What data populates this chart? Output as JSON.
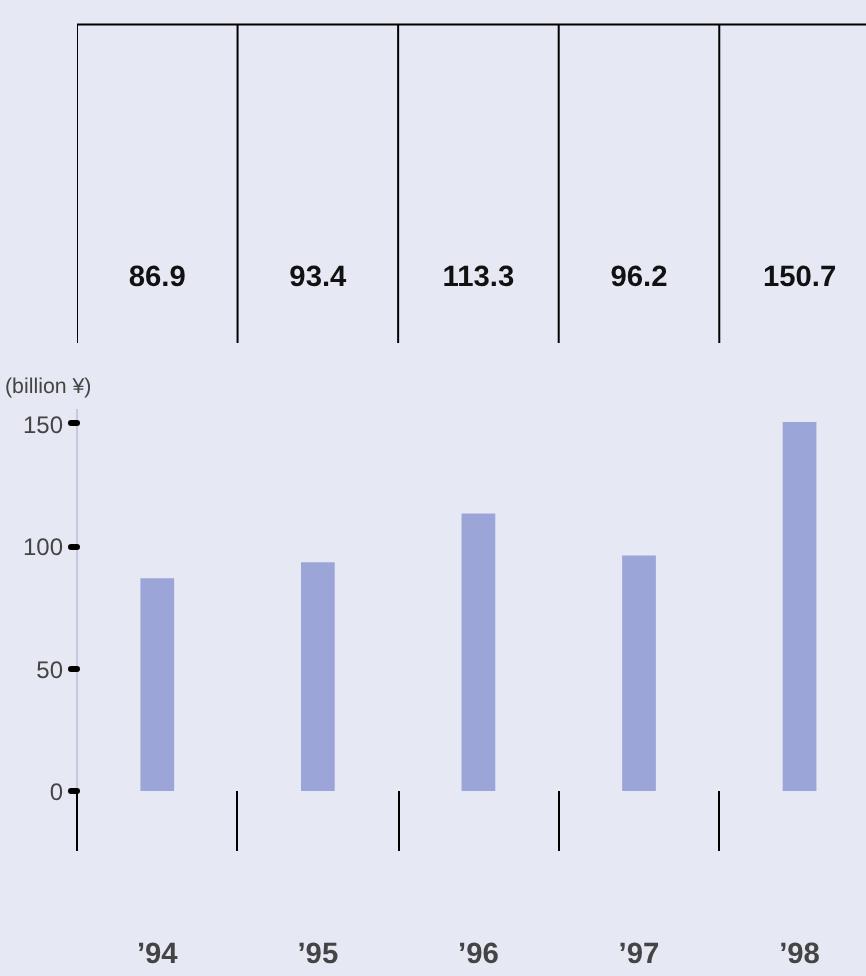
{
  "chart_data": {
    "type": "bar",
    "ylabel": "(billion ¥)",
    "categories": [
      "’94",
      "’95",
      "’96",
      "’97",
      "’98"
    ],
    "values": [
      86.9,
      93.4,
      113.3,
      96.2,
      150.7
    ],
    "color": "#9ba5d7",
    "ylim": [
      0,
      156
    ],
    "yticks": [
      0,
      50,
      100,
      150
    ],
    "data_labels": true,
    "grid": false
  }
}
